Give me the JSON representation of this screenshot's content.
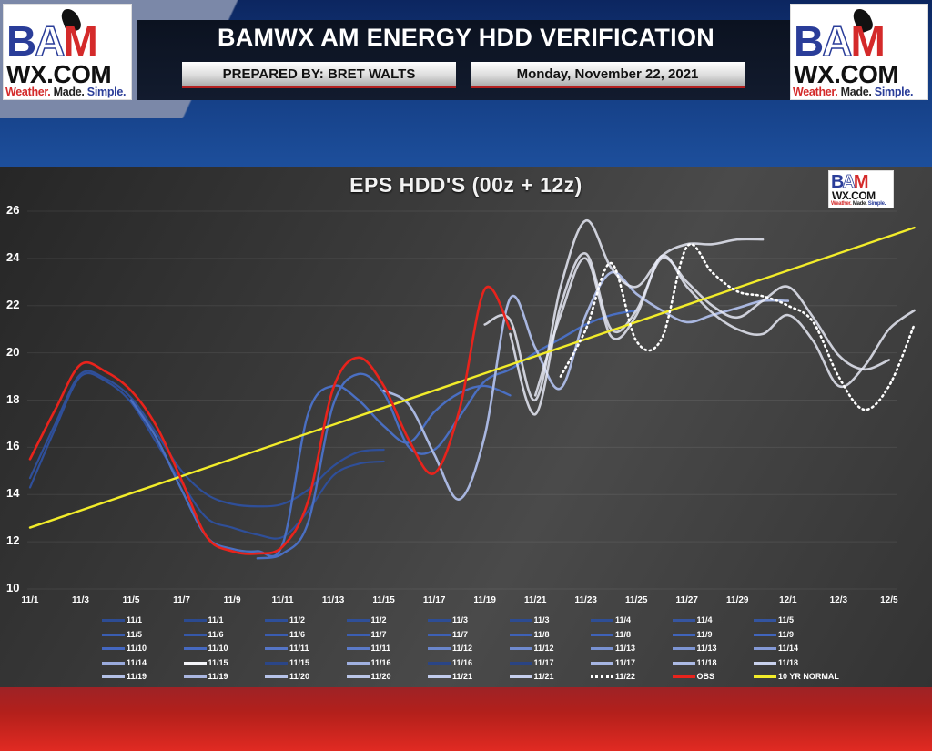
{
  "header": {
    "title": "BAMWX AM ENERGY HDD VERIFICATION",
    "prepared_by": "PREPARED BY: BRET WALTS",
    "date": "Monday, November 22, 2021",
    "logo": {
      "letters": [
        "B",
        "A",
        "M"
      ],
      "domain": "WX.COM",
      "tagline": [
        "Weather.",
        "Made.",
        "Simple."
      ]
    }
  },
  "colors": {
    "obs": "#e8231c",
    "normal": "#f2ec2a",
    "forecast_dark": "#2f4f99",
    "forecast_mid": "#4a6fc2",
    "forecast_light": "#a9b7e0",
    "forecast_lightest": "#e6e9f5",
    "panel_bg": "#3a3a3a",
    "header_blue": "#153f86",
    "footer_red": "#c9241e"
  },
  "chart_data": {
    "type": "line",
    "title": "EPS HDD'S (00z + 12z)",
    "xlabel": "",
    "ylabel": "",
    "ylim": [
      10,
      26
    ],
    "yticks": [
      "26",
      "24",
      "22",
      "20",
      "18",
      "16",
      "14",
      "12",
      "10"
    ],
    "xticks": [
      "11/1",
      "11/3",
      "11/5",
      "11/7",
      "11/9",
      "11/11",
      "11/13",
      "11/15",
      "11/17",
      "11/19",
      "11/21",
      "11/23",
      "11/25",
      "11/27",
      "11/29",
      "12/1",
      "12/3",
      "12/5"
    ],
    "grid": true,
    "legend_position": "bottom",
    "series": [
      {
        "name": "OBS",
        "style": "solid-red",
        "x_day_offset": 0,
        "values": [
          15.5,
          17.6,
          19.5,
          19.2,
          18.4,
          16.9,
          14.6,
          12.2,
          11.6,
          11.5,
          11.8,
          13.7,
          18.5,
          19.8,
          18.6,
          16.3,
          14.9,
          17.6,
          22.7,
          21.0
        ]
      },
      {
        "name": "10 YR NORMAL",
        "style": "solid-yellow",
        "x_day_offset": 0,
        "values": [
          12.6,
          13.0,
          13.3,
          13.7,
          14.0,
          14.4,
          14.8,
          15.1,
          15.5,
          15.8,
          16.2,
          16.6,
          16.9,
          17.3,
          17.7,
          18.0,
          18.4,
          18.8,
          19.1,
          19.5,
          19.8,
          20.2,
          20.6,
          20.9,
          21.3,
          21.6,
          22.0,
          22.4,
          22.7,
          23.1,
          23.5,
          23.8,
          24.2,
          24.5,
          24.9,
          25.3
        ]
      },
      {
        "name": "11/22",
        "style": "dotted-white",
        "x_day_offset": 21,
        "values": [
          19.0,
          21.0,
          23.8,
          20.5,
          20.6,
          24.5,
          23.4,
          22.6,
          22.4,
          22.0,
          21.3,
          19.0,
          17.6,
          18.6,
          21.2
        ]
      },
      {
        "name": "11/1 (00z)",
        "style": "dark-blue",
        "x_day_offset": 0,
        "values": [
          14.3,
          16.8,
          19.0,
          18.8,
          17.9,
          16.2,
          14.5,
          13.0,
          12.6,
          12.3,
          12.2,
          13.3,
          14.8,
          15.3,
          15.4
        ]
      },
      {
        "name": "11/1 (12z)",
        "style": "dark-blue",
        "x_day_offset": 0,
        "values": [
          14.7,
          17.0,
          19.1,
          18.9,
          18.1,
          16.6,
          15.0,
          14.0,
          13.6,
          13.5,
          13.6,
          14.2,
          15.2,
          15.8,
          15.9
        ]
      },
      {
        "name": "11/5 (00z)",
        "style": "mid-blue",
        "x_day_offset": 4,
        "values": [
          18.0,
          16.4,
          14.2,
          12.2,
          11.7,
          11.6,
          11.9,
          17.4,
          18.6,
          18.0,
          16.9,
          16.2,
          17.5,
          18.3,
          18.6,
          18.2
        ]
      },
      {
        "name": "11/10 (00z)",
        "style": "mid-blue",
        "x_day_offset": 9,
        "values": [
          11.3,
          11.5,
          12.8,
          17.8,
          19.1,
          18.3,
          16.0,
          15.9,
          17.3,
          18.8,
          19.3,
          20.0,
          20.6,
          21.2,
          21.6,
          21.8
        ]
      },
      {
        "name": "11/15 (12z)",
        "style": "light-blue",
        "x_day_offset": 14,
        "values": [
          18.4,
          17.8,
          15.7,
          13.8,
          16.5,
          22.3,
          20.2,
          18.5,
          21.6,
          23.4,
          22.5,
          21.8,
          21.3,
          21.6,
          21.9,
          22.2,
          22.2
        ]
      },
      {
        "name": "11/19 (00z)",
        "style": "lightest-blue",
        "x_day_offset": 18,
        "values": [
          21.2,
          21.4,
          18.0,
          22.8,
          25.6,
          23.6,
          22.8,
          24.1,
          24.6,
          24.6,
          24.8,
          24.8
        ]
      },
      {
        "name": "11/20 (12z)",
        "style": "lightest-blue",
        "x_day_offset": 19,
        "values": [
          20.8,
          17.4,
          22.0,
          24.2,
          21.0,
          21.8,
          24.0,
          23.0,
          22.0,
          21.5,
          22.2,
          22.8,
          21.5,
          19.9,
          19.3,
          19.7
        ]
      },
      {
        "name": "11/21 (12z)",
        "style": "lightest-blue",
        "x_day_offset": 20,
        "values": [
          18.2,
          21.6,
          24.0,
          20.7,
          21.6,
          24.1,
          22.8,
          21.7,
          21.0,
          20.8,
          21.6,
          20.5,
          18.6,
          19.4,
          21.0,
          21.8
        ]
      }
    ]
  },
  "legend": {
    "rows": [
      [
        {
          "label": "11/1",
          "swatch": "#2d4c94"
        },
        {
          "label": "11/1",
          "swatch": "#2b4a90"
        },
        {
          "label": "11/2",
          "swatch": "#2e4f9a"
        },
        {
          "label": "11/2",
          "swatch": "#2f4f98"
        },
        {
          "label": "11/3",
          "swatch": "#2d4d96"
        },
        {
          "label": "11/3",
          "swatch": "#2c4b92"
        },
        {
          "label": "11/4",
          "swatch": "#2e4e96"
        },
        {
          "label": "11/4",
          "swatch": "#3655a0"
        },
        {
          "label": "11/5",
          "swatch": "#3354a0"
        }
      ],
      [
        {
          "label": "11/5",
          "swatch": "#3a5db0"
        },
        {
          "label": "11/6",
          "swatch": "#3658a8"
        },
        {
          "label": "11/6",
          "swatch": "#3a5cb0"
        },
        {
          "label": "11/7",
          "swatch": "#3b5eb2"
        },
        {
          "label": "11/7",
          "swatch": "#3d60b5"
        },
        {
          "label": "11/8",
          "swatch": "#3e61b6"
        },
        {
          "label": "11/8",
          "swatch": "#3f62b8"
        },
        {
          "label": "11/9",
          "swatch": "#4064ba"
        },
        {
          "label": "11/9",
          "swatch": "#4165bc"
        }
      ],
      [
        {
          "label": "11/10",
          "swatch": "#4467c0"
        },
        {
          "label": "11/10",
          "swatch": "#4669c0"
        },
        {
          "label": "11/11",
          "swatch": "#5575c6"
        },
        {
          "label": "11/11",
          "swatch": "#5b7ac8"
        },
        {
          "label": "11/12",
          "swatch": "#6a86cc"
        },
        {
          "label": "11/12",
          "swatch": "#6f8acf"
        },
        {
          "label": "11/13",
          "swatch": "#7891d2"
        },
        {
          "label": "11/13",
          "swatch": "#7d95d4"
        },
        {
          "label": "11/14",
          "swatch": "#8499d6"
        }
      ],
      [
        {
          "label": "11/14",
          "swatch": "#9aaadc"
        },
        {
          "label": "11/15",
          "swatch": "#f4f4f8"
        },
        {
          "label": "11/15",
          "swatch": "#2b4688"
        },
        {
          "label": "11/16",
          "swatch": "#a0b0e0"
        },
        {
          "label": "11/16",
          "swatch": "#2a4586"
        },
        {
          "label": "11/17",
          "swatch": "#2a4484"
        },
        {
          "label": "11/17",
          "swatch": "#a6b5e2"
        },
        {
          "label": "11/18",
          "swatch": "#acbae4"
        },
        {
          "label": "11/18",
          "swatch": "#c9d1ec"
        }
      ],
      [
        {
          "label": "11/19",
          "swatch": "#b3c0e6"
        },
        {
          "label": "11/19",
          "swatch": "#aab6e0"
        },
        {
          "label": "11/20",
          "swatch": "#b6c2e8"
        },
        {
          "label": "11/20",
          "swatch": "#bac5e8"
        },
        {
          "label": "11/21",
          "swatch": "#c1cbec"
        },
        {
          "label": "11/21",
          "swatch": "#c6cfee"
        },
        {
          "label": "11/22",
          "swatch": "dotted"
        },
        {
          "label": "OBS",
          "swatch": "#e8231c"
        },
        {
          "label": "10 YR NORMAL",
          "swatch": "#f2ec2a"
        }
      ]
    ]
  }
}
